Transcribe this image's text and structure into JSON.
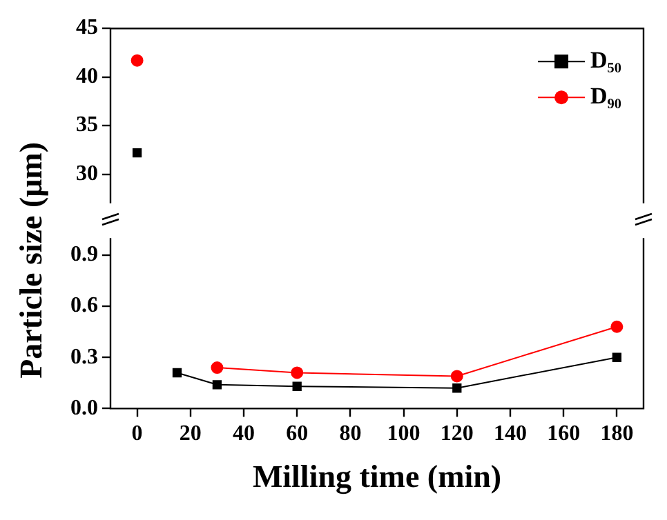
{
  "chart_data": [
    {
      "type": "line",
      "ylabel": "Particle size (μm)",
      "x": [
        0
      ],
      "xlim": [
        -10,
        190
      ],
      "xticks": [
        0,
        20,
        40,
        60,
        80,
        100,
        120,
        140,
        160,
        180
      ],
      "ylim": [
        27,
        45
      ],
      "yticks": [
        30,
        35,
        40,
        45
      ],
      "tick_labels": "y",
      "legend": "top right",
      "grid": false,
      "series": [
        {
          "name": "D₅₀",
          "color": "#000000",
          "marker": "square",
          "values": [
            32.2
          ]
        },
        {
          "name": "D₉₀",
          "color": "#ff0000",
          "marker": "circle",
          "values": [
            41.7
          ]
        }
      ]
    },
    {
      "type": "line",
      "xlabel": "Milling time (min)",
      "x": [
        15,
        30,
        60,
        120,
        180
      ],
      "xlim": [
        -10,
        190
      ],
      "xticks": [
        0,
        20,
        40,
        60,
        80,
        100,
        120,
        140,
        160,
        180
      ],
      "ylim": [
        0,
        1.0
      ],
      "yticks": [
        {
          "value": 0,
          "label": "0.0"
        },
        0.3,
        0.6,
        0.9
      ],
      "grid": false,
      "series": [
        {
          "color": "#000000",
          "marker": "square",
          "values": [
            0.21,
            0.14,
            0.13,
            0.12,
            0.3
          ]
        },
        {
          "color": "#ff0000",
          "marker": "circle",
          "x": [
            30,
            60,
            120,
            180
          ],
          "values": [
            0.24,
            0.21,
            0.19,
            0.48
          ]
        }
      ]
    }
  ]
}
